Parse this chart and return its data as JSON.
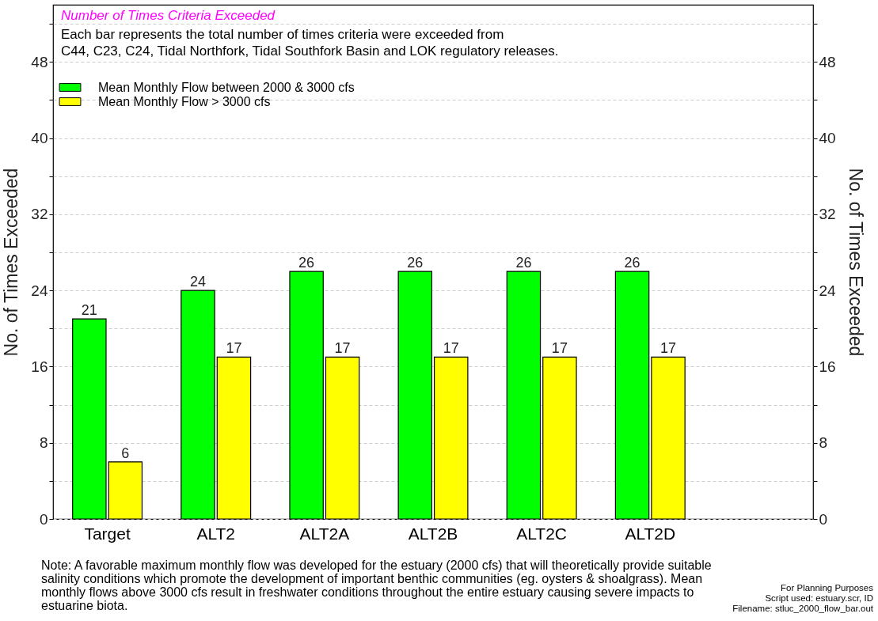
{
  "chart_data": {
    "type": "bar",
    "title": "Number of Times Criteria Exceeded",
    "subtitle": "Each bar represents the total number of times criteria were exceeded from\nC44, C23, C24, Tidal Northfork, Tidal Southfork Basin and LOK regulatory releases.",
    "ylabel": "No. of Times Exceeded",
    "y2label": "No. of Times Exceeded",
    "categories": [
      "Target",
      "ALT2",
      "ALT2A",
      "ALT2B",
      "ALT2C",
      "ALT2D",
      null
    ],
    "series": [
      {
        "name": "Mean Monthly Flow between 2000 & 3000 cfs",
        "color": "#00ff00",
        "values": [
          21,
          24,
          26,
          26,
          26,
          26,
          null
        ]
      },
      {
        "name": "Mean Monthly Flow > 3000 cfs",
        "color": "#ffff00",
        "values": [
          6,
          17,
          17,
          17,
          17,
          17,
          null
        ]
      }
    ],
    "ylim": [
      0,
      54
    ],
    "yticks": [
      0,
      {
        "value": 4,
        "label": null
      },
      8,
      {
        "value": 12,
        "label": null
      },
      16,
      {
        "value": 20,
        "label": null
      },
      24,
      {
        "value": 28,
        "label": null
      },
      32,
      {
        "value": 36,
        "label": null
      },
      40,
      {
        "value": 44,
        "label": null
      },
      48,
      {
        "value": 52,
        "label": null
      }
    ],
    "y2lim": [
      0,
      54
    ],
    "y2ticks": [
      0,
      {
        "value": 4,
        "label": null
      },
      8,
      {
        "value": 12,
        "label": null
      },
      16,
      {
        "value": 20,
        "label": null
      },
      24,
      {
        "value": 28,
        "label": null
      },
      32,
      {
        "value": 36,
        "label": null
      },
      40,
      {
        "value": 44,
        "label": null
      },
      48,
      {
        "value": 52,
        "label": null
      }
    ],
    "grid": "y",
    "legend": "top left",
    "data_labels": true,
    "annotations": [
      "Note: A favorable maximum monthly flow was developed for the estuary (2000 cfs) that will theoretically provide suitable salinity conditions which promote the development of important benthic communities (eg. oysters & shoalgrass). Mean monthly flows above 3000 cfs result in freshwater conditions throughout the entire estuary causing severe impacts to estuarine biota.",
      "For Planning Purposes",
      "Script used: estuary.scr, ID",
      "Filename: stluc_2000_flow_bar.out"
    ]
  }
}
